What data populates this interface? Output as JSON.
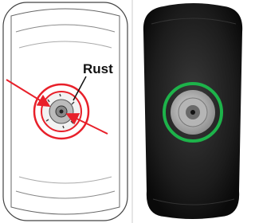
{
  "labels": {
    "rust": "Rust"
  }
}
